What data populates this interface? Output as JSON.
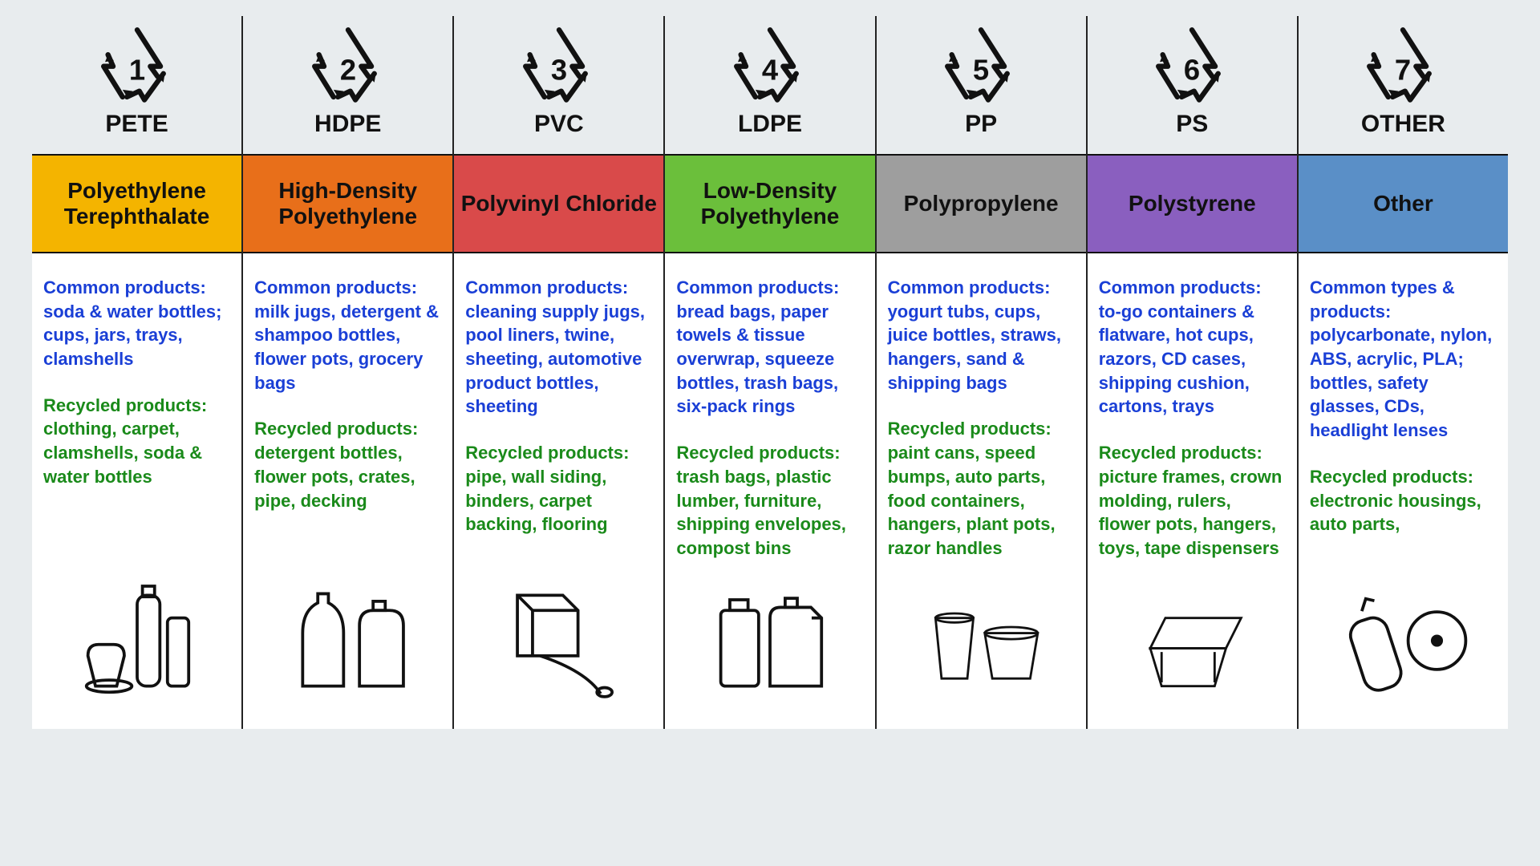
{
  "type": "infographic-table",
  "background_color": "#e8ecee",
  "body_background": "#ffffff",
  "divider_color": "#222222",
  "symbol_color": "#111111",
  "common_color": "#1a3fd6",
  "recycled_color": "#1a8a1a",
  "name_text_color": "#111111",
  "abbr_fontsize": 30,
  "name_fontsize": 28,
  "body_fontsize": 22,
  "columns": [
    {
      "number": "1",
      "abbr": "PETE",
      "full_name": "Polyethylene Terephthalate",
      "bar_color": "#f4b400",
      "common_label": "Common products:",
      "common_text": "soda & water bottles; cups, jars, trays, clamshells",
      "recycled_label": "Recycled products:",
      "recycled_text": "clothing, carpet, clamshells, soda & water bottles",
      "illustration": "bottles"
    },
    {
      "number": "2",
      "abbr": "HDPE",
      "full_name": "High-Density Polyethylene",
      "bar_color": "#e86f1a",
      "common_label": "Common products:",
      "common_text": "milk jugs, detergent & shampoo bottles, flower pots, grocery bags",
      "recycled_label": "Recycled products:",
      "recycled_text": "detergent bottles, flower pots, crates, pipe, decking",
      "illustration": "jugs"
    },
    {
      "number": "3",
      "abbr": "PVC",
      "full_name": "Polyvinyl Chloride",
      "bar_color": "#d94a4a",
      "common_label": "Common products:",
      "common_text": "cleaning supply jugs, pool liners, twine, sheeting, automotive product bottles, sheeting",
      "recycled_label": "Recycled products:",
      "recycled_text": "pipe, wall siding, binders, carpet backing, flooring",
      "illustration": "box-roll"
    },
    {
      "number": "4",
      "abbr": "LDPE",
      "full_name": "Low-Density Polyethylene",
      "bar_color": "#6bbf3b",
      "common_label": "Common products:",
      "common_text": "bread bags, paper towels & tissue overwrap, squeeze bottles, trash bags, six-pack rings",
      "recycled_label": "Recycled products:",
      "recycled_text": "trash bags, plastic lumber, furniture, shipping envelopes, compost bins",
      "illustration": "containers"
    },
    {
      "number": "5",
      "abbr": "PP",
      "full_name": "Polypropylene",
      "bar_color": "#9e9e9e",
      "common_label": "Common products:",
      "common_text": "yogurt tubs, cups, juice bottles, straws, hangers, sand & shipping bags",
      "recycled_label": "Recycled products:",
      "recycled_text": "paint cans, speed bumps, auto parts, food containers, hangers, plant pots, razor handles",
      "illustration": "cup-tub"
    },
    {
      "number": "6",
      "abbr": "PS",
      "full_name": "Polystyrene",
      "bar_color": "#8a5fbf",
      "common_label": "Common products:",
      "common_text": "to-go containers & flatware,  hot cups, razors, CD cases, shipping cushion, cartons, trays",
      "recycled_label": "Recycled products:",
      "recycled_text": "picture frames, crown molding, rulers, flower pots, hangers, toys, tape dispensers",
      "illustration": "clamshell"
    },
    {
      "number": "7",
      "abbr": "OTHER",
      "full_name": "Other",
      "bar_color": "#5a8fc7",
      "common_label": "Common types & products:",
      "common_text": "polycarbonate, nylon, ABS, acrylic, PLA; bottles, safety glasses, CDs, headlight lenses",
      "recycled_label": "Recycled products:",
      "recycled_text": "electronic housings, auto parts,",
      "illustration": "spray-cd"
    }
  ]
}
